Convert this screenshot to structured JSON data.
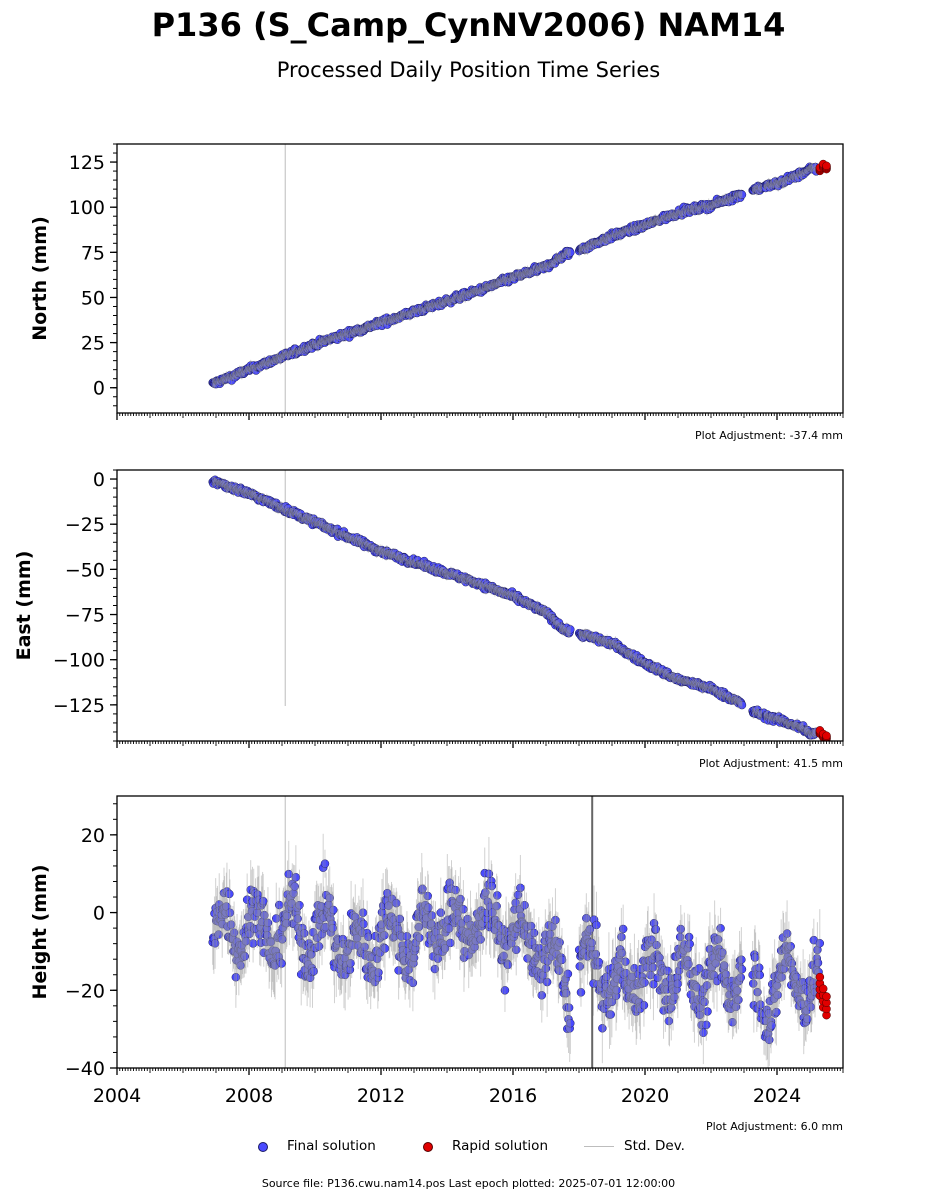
{
  "title": "P136 (S_Camp_CynNV2006) NAM14",
  "subtitle": "Processed Daily Position Time Series",
  "legend": {
    "final": "Final solution",
    "rapid": "Rapid solution",
    "std": "Std. Dev."
  },
  "footer": {
    "source": "Source file: P136.cwu.nam14.pos  Last epoch plotted: 2025-07-01 12:00:00"
  },
  "colors": {
    "final_fill": "#4a4aff",
    "rapid_fill": "#e00000",
    "std_line": "#bdbdbd"
  },
  "chart_data": [
    {
      "type": "scatter",
      "ylabel": "North (mm)",
      "xlim": [
        2004,
        2026
      ],
      "ylim": [
        -14,
        135
      ],
      "yticks": [
        0,
        25,
        50,
        75,
        100,
        125
      ],
      "ytick_labels": [
        "0",
        "25",
        "50",
        "75",
        "100",
        "125"
      ],
      "adjustment": "Plot Adjustment: -37.4 mm",
      "series": [
        {
          "name": "Final solution",
          "x": [
            2006.9,
            2008.0,
            2009.0,
            2010.0,
            2011.0,
            2012.0,
            2013.0,
            2014.0,
            2015.0,
            2016.0,
            2017.0,
            2017.6,
            2018.1,
            2019.0,
            2020.0,
            2021.0,
            2022.0,
            2022.9,
            2023.3,
            2024.0,
            2024.8,
            2025.0
          ],
          "y": [
            2,
            10,
            17,
            24,
            30,
            36,
            42,
            48,
            54,
            61,
            67,
            74,
            77,
            84,
            90,
            97,
            101,
            107,
            110,
            113,
            119,
            121
          ]
        },
        {
          "name": "Rapid solution",
          "x": [
            2025.3,
            2025.4,
            2025.5
          ],
          "y": [
            121,
            123,
            122
          ]
        }
      ],
      "std_spike_x": 2009.1
    },
    {
      "type": "scatter",
      "ylabel": "East (mm)",
      "xlim": [
        2004,
        2026
      ],
      "ylim": [
        -145,
        5
      ],
      "yticks": [
        0,
        -25,
        -50,
        -75,
        -100,
        -125
      ],
      "ytick_labels": [
        "0",
        "−25",
        "−50",
        "−75",
        "−100",
        "−125"
      ],
      "adjustment": "Plot Adjustment: 41.5 mm",
      "series": [
        {
          "name": "Final solution",
          "x": [
            2006.9,
            2008.0,
            2009.0,
            2010.0,
            2011.0,
            2012.0,
            2013.0,
            2014.0,
            2015.0,
            2016.0,
            2017.0,
            2017.6,
            2018.1,
            2019.0,
            2020.0,
            2021.0,
            2022.0,
            2022.9,
            2023.3,
            2024.0,
            2024.8,
            2025.0
          ],
          "y": [
            -1,
            -8,
            -16,
            -24,
            -32,
            -40,
            -46,
            -52,
            -58,
            -65,
            -74,
            -84,
            -86,
            -91,
            -102,
            -111,
            -116,
            -124,
            -129,
            -133,
            -138,
            -141
          ]
        },
        {
          "name": "Rapid solution",
          "x": [
            2025.3,
            2025.4,
            2025.5
          ],
          "y": [
            -140,
            -142,
            -143
          ]
        }
      ],
      "std_spike_x": 2009.1
    },
    {
      "type": "scatter",
      "ylabel": "Height (mm)",
      "xlim": [
        2004,
        2026
      ],
      "ylim": [
        -40,
        30
      ],
      "yticks": [
        20,
        0,
        -20,
        -40
      ],
      "ytick_labels": [
        "20",
        "0",
        "−20",
        "−40"
      ],
      "xticks": [
        2004,
        2008,
        2012,
        2016,
        2020,
        2024
      ],
      "xtick_labels": [
        "2004",
        "2008",
        "2012",
        "2016",
        "2020",
        "2024"
      ],
      "adjustment": "Plot Adjustment: 6.0 mm",
      "series": [
        {
          "name": "Final solution",
          "x": [
            2006.9,
            2007.5,
            2008.0,
            2008.5,
            2009.0,
            2009.5,
            2010.0,
            2010.5,
            2011.0,
            2011.5,
            2012.0,
            2012.5,
            2013.0,
            2013.5,
            2014.0,
            2014.5,
            2015.0,
            2015.5,
            2016.0,
            2016.5,
            2017.0,
            2017.5,
            2018.1,
            2018.5,
            2019.0,
            2019.5,
            2020.0,
            2020.5,
            2021.0,
            2021.5,
            2022.0,
            2022.5,
            2022.9,
            2023.3,
            2023.8,
            2024.3,
            2024.8,
            2025.1
          ],
          "y": [
            -3,
            -5,
            -2,
            -6,
            -4,
            -3,
            -7,
            -2,
            -12,
            -8,
            -6,
            -4,
            -9,
            -3,
            -2,
            -4,
            -1,
            -3,
            -5,
            -8,
            -10,
            -18,
            -15,
            -12,
            -20,
            -17,
            -14,
            -18,
            -13,
            -19,
            -15,
            -20,
            -10,
            -20,
            -22,
            -15,
            -18,
            -20
          ]
        },
        {
          "name": "Rapid solution",
          "x": [
            2025.3,
            2025.4,
            2025.5
          ],
          "y": [
            -19,
            -22,
            -24
          ]
        }
      ],
      "std_spike_x": 2009.1,
      "std_dark_x": 2018.4
    }
  ]
}
